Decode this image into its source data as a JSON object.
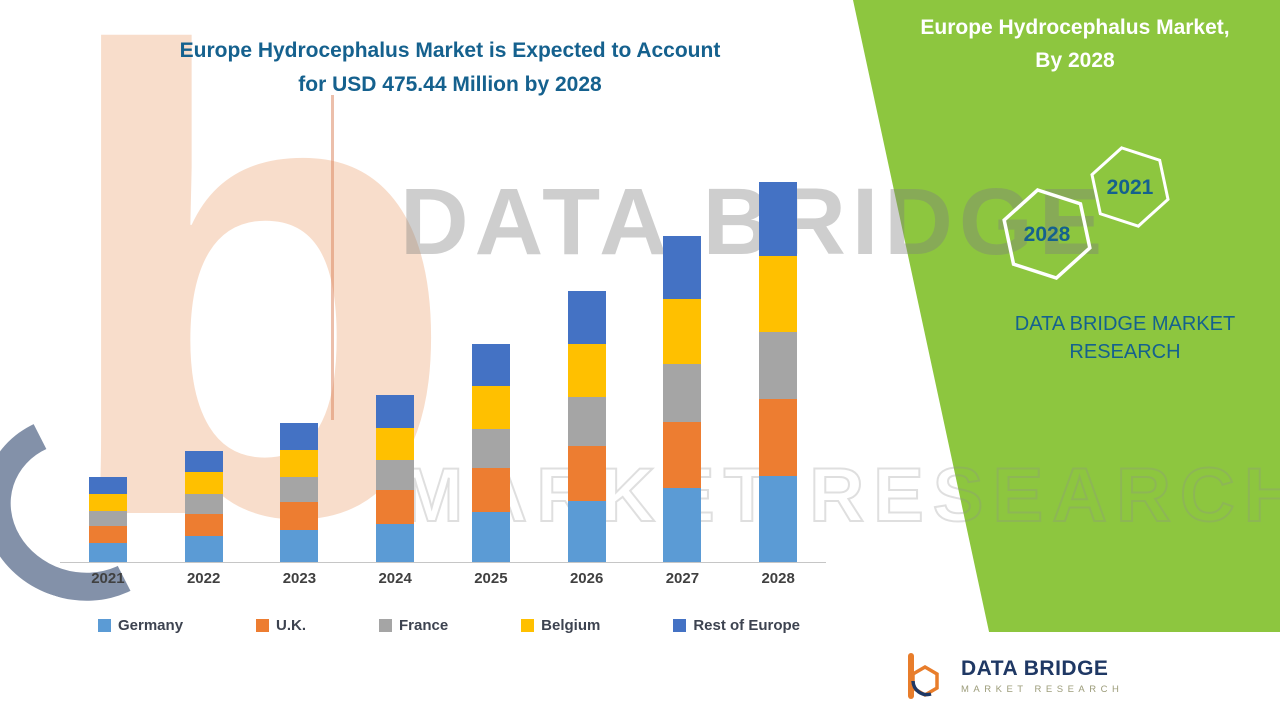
{
  "title": {
    "line1": "Europe Hydrocephalus Market is Expected to Account",
    "line2": "for USD 475.44 Million by 2028"
  },
  "side_panel": {
    "title_line1": "Europe Hydrocephalus Market,",
    "title_line2": "By 2028",
    "hexagons": [
      "2028",
      "2021"
    ],
    "brand_line1": "DATA BRIDGE MARKET",
    "brand_line2": "RESEARCH"
  },
  "watermark": {
    "line1": "DATA BRIDGE",
    "line2": "MARKET RESEARCH"
  },
  "footer_logo": {
    "name": "DATA BRIDGE",
    "sub": "MARKET RESEARCH"
  },
  "colors": {
    "panel_green": "#8DC63F",
    "title_teal": "#15618E",
    "axis_gray": "#C6C6C6"
  },
  "chart_data": {
    "type": "bar",
    "stacked": true,
    "unit": "USD Million",
    "title": "Europe Hydrocephalus Market is Expected to Account for USD 475.44 Million by 2028",
    "xlabel": "",
    "ylabel": "",
    "grid": false,
    "legend_position": "bottom",
    "ylim": [
      0,
      500
    ],
    "categories": [
      "2021",
      "2022",
      "2023",
      "2024",
      "2025",
      "2026",
      "2027",
      "2028"
    ],
    "series": [
      {
        "name": "Germany",
        "color": "#5B9BD5",
        "values": [
          24,
          32,
          40,
          48,
          62,
          77,
          93,
          108
        ]
      },
      {
        "name": "U.K.",
        "color": "#ED7D31",
        "values": [
          21,
          28,
          35,
          42,
          55,
          68,
          82,
          95.44
        ]
      },
      {
        "name": "France",
        "color": "#A5A5A5",
        "values": [
          19,
          25,
          31,
          37,
          49,
          61,
          73,
          85
        ]
      },
      {
        "name": "Belgium",
        "color": "#FFC000",
        "values": [
          21,
          27,
          34,
          41,
          54,
          67,
          81,
          94
        ]
      },
      {
        "name": "Rest of Europe",
        "color": "#4472C4",
        "values": [
          21,
          27,
          34,
          41,
          53,
          66,
          79,
          93
        ]
      }
    ],
    "totals": [
      106,
      139,
      174,
      209,
      273,
      339,
      408,
      475.44
    ]
  }
}
